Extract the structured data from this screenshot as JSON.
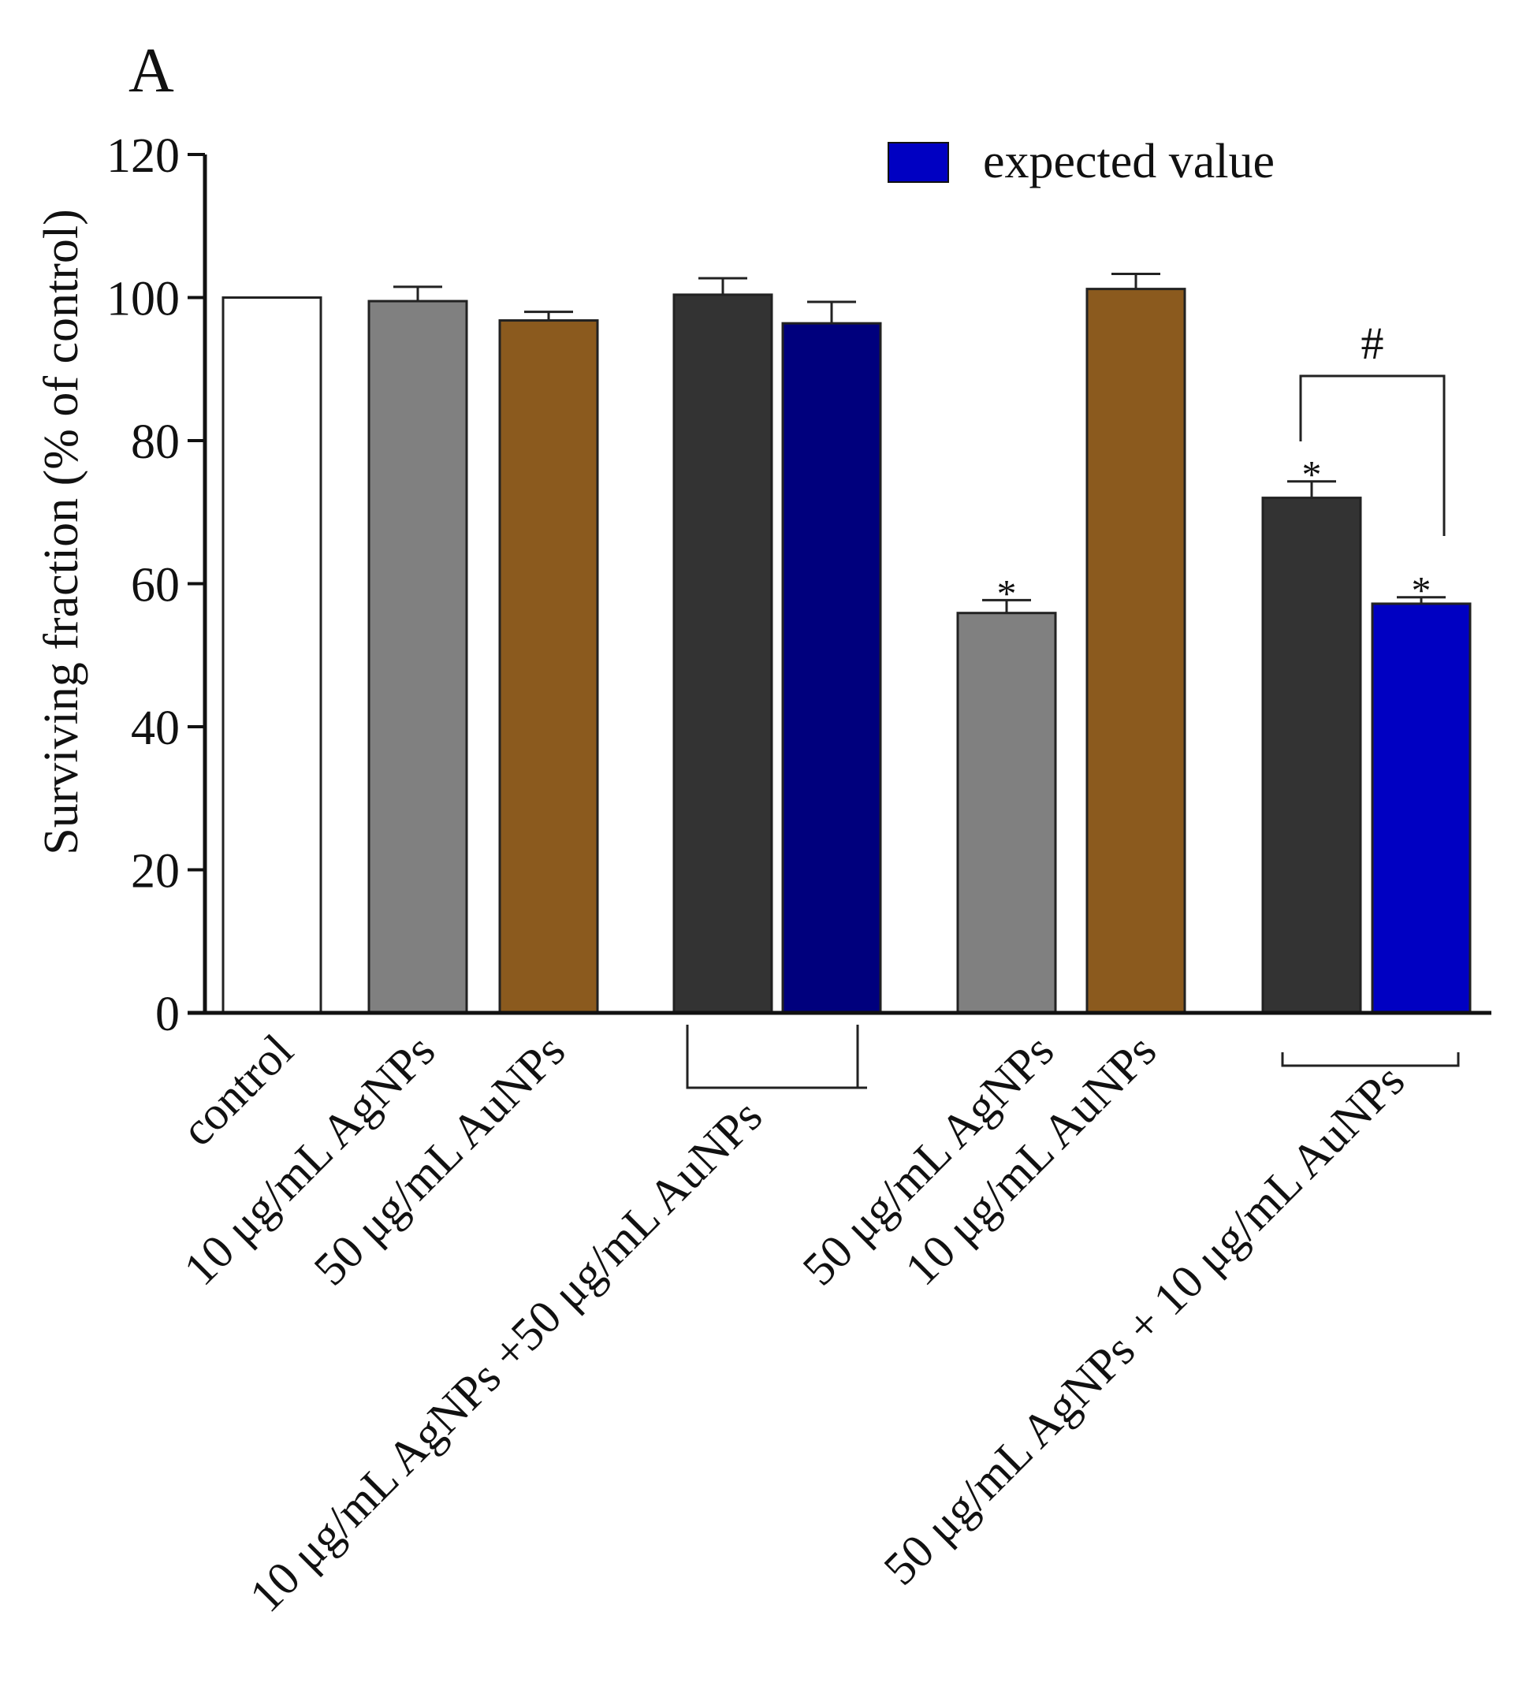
{
  "panel_label": "A",
  "legend": {
    "label": "expected value",
    "color": "#0000c2"
  },
  "chart_data": {
    "type": "bar",
    "ylabel": "Surviving fraction (% of control)",
    "ylim": [
      0,
      120
    ],
    "yticks": [
      0,
      20,
      40,
      60,
      80,
      100,
      120
    ],
    "legend_position": "top-right",
    "bars": [
      {
        "value": 100.0,
        "error": 0,
        "color": "#ffffff",
        "star": false
      },
      {
        "value": 99.5,
        "error": 2.0,
        "color": "#808080",
        "star": false
      },
      {
        "value": 96.8,
        "error": 1.2,
        "color": "#8b5a1e",
        "star": false
      },
      {
        "value": 100.4,
        "error": 2.3,
        "color": "#333333",
        "star": false
      },
      {
        "value": 96.4,
        "error": 3.0,
        "color": "#00007d",
        "star": false
      },
      {
        "value": 55.9,
        "error": 1.8,
        "color": "#808080",
        "star": true
      },
      {
        "value": 101.2,
        "error": 2.1,
        "color": "#8b5a1e",
        "star": false
      },
      {
        "value": 72.0,
        "error": 2.3,
        "color": "#333333",
        "star": true
      },
      {
        "value": 57.2,
        "error": 0.9,
        "color": "#0000c2",
        "star": true
      }
    ],
    "labels": [
      "control",
      "10 μg/mL AgNPs",
      "50 μg/mL AuNPs",
      "10 μg/mL AgNPs +50 μg/mL AuNPs",
      "50 μg/mL AgNPs",
      "10 μg/mL AuNPs",
      "50 μg/mL AgNPs + 10 μg/mL AuNPs"
    ],
    "annotations": {
      "star": "*",
      "significance": "#"
    }
  }
}
